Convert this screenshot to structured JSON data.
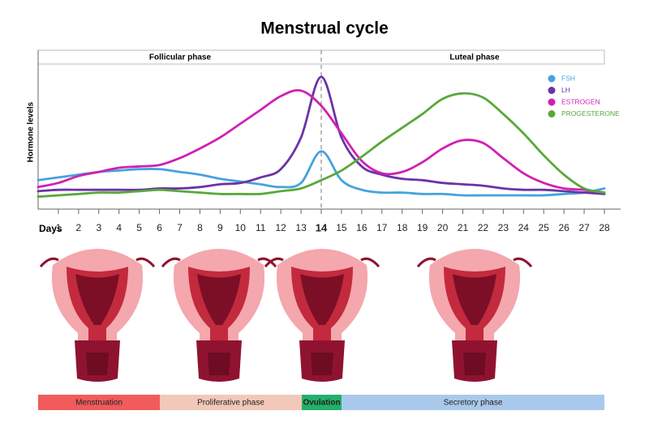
{
  "chart_data": {
    "type": "line",
    "title": "Menstrual cycle",
    "y_label": "Hormone levels",
    "x_label": "Days",
    "phase_header": [
      "Follicular phase",
      "Luteal phase"
    ],
    "phase_bar": [
      "Menstruation",
      "Proliferative phase",
      "Ovulation",
      "Secretory phase"
    ],
    "x": [
      0,
      1,
      2,
      3,
      4,
      5,
      6,
      7,
      8,
      9,
      10,
      11,
      12,
      13,
      14,
      15,
      16,
      17,
      18,
      19,
      20,
      21,
      22,
      23,
      24,
      25,
      26,
      27,
      28
    ],
    "xlim": [
      0,
      28
    ],
    "xticks": [
      1,
      2,
      3,
      4,
      5,
      6,
      7,
      8,
      9,
      10,
      11,
      12,
      13,
      14,
      15,
      16,
      17,
      18,
      19,
      20,
      21,
      22,
      23,
      24,
      25,
      26,
      27,
      28
    ],
    "ylim": [
      0,
      100
    ],
    "ovulation_day": 14,
    "legend": "upper right",
    "series": [
      {
        "name": "FSH",
        "color": "#45a3dc",
        "values": [
          21,
          23,
          25,
          27,
          28,
          29,
          29,
          27,
          25,
          22,
          20,
          18,
          16,
          19,
          42,
          21,
          14,
          12,
          12,
          11,
          11,
          10,
          10,
          10,
          10,
          10,
          11,
          12,
          15
        ]
      },
      {
        "name": "LH",
        "color": "#6b33a6",
        "values": [
          13,
          14,
          14,
          14,
          14,
          14,
          15,
          15,
          16,
          18,
          19,
          23,
          29,
          52,
          96,
          52,
          31,
          25,
          22,
          21,
          19,
          18,
          17,
          15,
          14,
          14,
          13,
          12,
          11
        ]
      },
      {
        "name": "ESTROGEN",
        "color": "#d11fb3",
        "values": [
          16,
          19,
          24,
          27,
          30,
          31,
          32,
          37,
          44,
          52,
          62,
          72,
          82,
          86,
          75,
          55,
          35,
          26,
          27,
          34,
          44,
          50,
          48,
          37,
          26,
          19,
          15,
          14,
          12
        ]
      },
      {
        "name": "PROGESTERONE",
        "color": "#58a93a",
        "values": [
          9,
          10,
          11,
          12,
          12,
          13,
          14,
          13,
          12,
          11,
          11,
          11,
          13,
          15,
          21,
          28,
          38,
          49,
          59,
          69,
          80,
          84,
          81,
          69,
          55,
          39,
          25,
          15,
          12
        ]
      }
    ]
  }
}
